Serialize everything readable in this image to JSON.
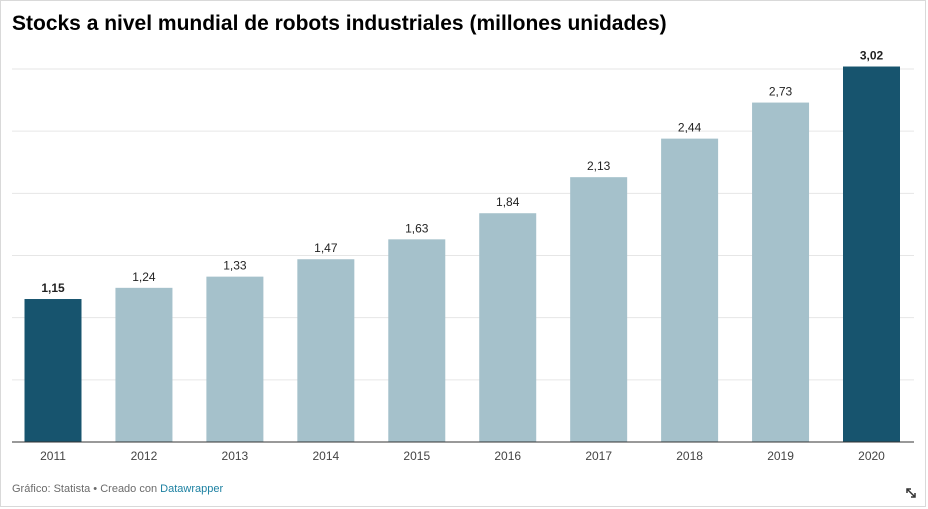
{
  "chart_data": {
    "type": "bar",
    "title": "Stocks a nivel mundial de robots industriales (millones unidades)",
    "categories": [
      "2011",
      "2012",
      "2013",
      "2014",
      "2015",
      "2016",
      "2017",
      "2018",
      "2019",
      "2020"
    ],
    "values": [
      1.15,
      1.24,
      1.33,
      1.47,
      1.63,
      1.84,
      2.13,
      2.44,
      2.73,
      3.02
    ],
    "value_labels": [
      "1,15",
      "1,24",
      "1,33",
      "1,47",
      "1,63",
      "1,84",
      "2,13",
      "2,44",
      "2,73",
      "3,02"
    ],
    "highlighted": [
      "2011",
      "2020"
    ],
    "ylim": [
      0,
      3.0
    ],
    "gridline_step": 0.5,
    "xlabel": "",
    "ylabel": "",
    "grid": true,
    "colors": {
      "highlight": "#17546e",
      "default": "#a5c1cb",
      "grid": "#e6e6e6",
      "axis": "#333333"
    }
  },
  "footer": {
    "source_text": "Gráfico: Statista • Creado con ",
    "tool_link": "Datawrapper"
  },
  "icons": {
    "expand": "expand-icon"
  }
}
